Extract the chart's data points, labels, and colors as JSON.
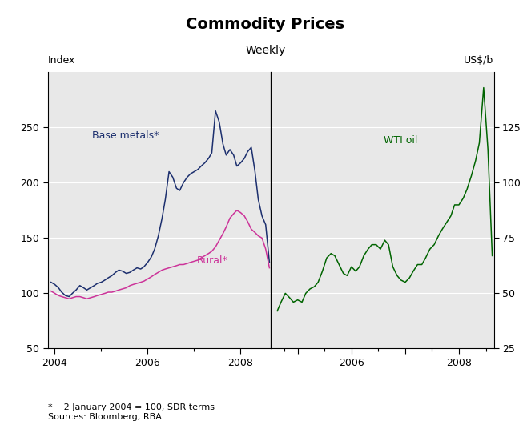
{
  "title": "Commodity Prices",
  "subtitle": "Weekly",
  "ylabel_left": "Index",
  "ylabel_right": "US$/b",
  "footnote": "*    2 January 2004 = 100, SDR terms\nSources: Bloomberg; RBA",
  "label_metals": "Base metals*",
  "label_rural": "Rural*",
  "label_oil": "WTI oil",
  "color_metals": "#1c2f6e",
  "color_rural": "#cc3399",
  "color_oil": "#006400",
  "ylim_left": [
    50,
    300
  ],
  "ylim_right": [
    25,
    150
  ],
  "yticks_left": [
    50,
    100,
    150,
    200,
    250
  ],
  "yticks_right": [
    25,
    50,
    75,
    100,
    125
  ],
  "background_color": "#e8e8e8",
  "metals_x": [
    2003.92,
    2004.0,
    2004.08,
    2004.15,
    2004.23,
    2004.31,
    2004.38,
    2004.46,
    2004.54,
    2004.62,
    2004.69,
    2004.77,
    2004.85,
    2004.92,
    2005.0,
    2005.08,
    2005.15,
    2005.23,
    2005.31,
    2005.38,
    2005.46,
    2005.54,
    2005.62,
    2005.69,
    2005.77,
    2005.85,
    2005.92,
    2006.0,
    2006.08,
    2006.15,
    2006.23,
    2006.31,
    2006.38,
    2006.46,
    2006.54,
    2006.62,
    2006.69,
    2006.77,
    2006.85,
    2006.92,
    2007.0,
    2007.08,
    2007.15,
    2007.23,
    2007.31,
    2007.38,
    2007.46,
    2007.54,
    2007.62,
    2007.69,
    2007.77,
    2007.85,
    2007.92,
    2008.0,
    2008.08,
    2008.15,
    2008.23,
    2008.31,
    2008.38,
    2008.46,
    2008.54,
    2008.62
  ],
  "metals_y": [
    110,
    108,
    105,
    101,
    98,
    97,
    100,
    103,
    107,
    105,
    103,
    105,
    107,
    109,
    110,
    112,
    114,
    116,
    119,
    121,
    120,
    118,
    119,
    121,
    123,
    122,
    124,
    128,
    133,
    140,
    152,
    168,
    185,
    210,
    205,
    195,
    193,
    200,
    205,
    208,
    210,
    212,
    215,
    218,
    222,
    227,
    265,
    255,
    235,
    225,
    230,
    225,
    215,
    218,
    222,
    228,
    232,
    210,
    185,
    170,
    162,
    128
  ],
  "rural_x": [
    2003.92,
    2004.0,
    2004.08,
    2004.15,
    2004.23,
    2004.31,
    2004.38,
    2004.46,
    2004.54,
    2004.62,
    2004.69,
    2004.77,
    2004.85,
    2004.92,
    2005.0,
    2005.08,
    2005.15,
    2005.23,
    2005.31,
    2005.38,
    2005.46,
    2005.54,
    2005.62,
    2005.69,
    2005.77,
    2005.85,
    2005.92,
    2006.0,
    2006.08,
    2006.15,
    2006.23,
    2006.31,
    2006.38,
    2006.46,
    2006.54,
    2006.62,
    2006.69,
    2006.77,
    2006.85,
    2006.92,
    2007.0,
    2007.08,
    2007.15,
    2007.23,
    2007.31,
    2007.38,
    2007.46,
    2007.54,
    2007.62,
    2007.69,
    2007.77,
    2007.85,
    2007.92,
    2008.0,
    2008.08,
    2008.15,
    2008.23,
    2008.31,
    2008.38,
    2008.46,
    2008.54,
    2008.62
  ],
  "rural_y": [
    102,
    100,
    98,
    97,
    96,
    95,
    96,
    97,
    97,
    96,
    95,
    96,
    97,
    98,
    99,
    100,
    101,
    101,
    102,
    103,
    104,
    105,
    107,
    108,
    109,
    110,
    111,
    113,
    115,
    117,
    119,
    121,
    122,
    123,
    124,
    125,
    126,
    126,
    127,
    128,
    129,
    130,
    132,
    134,
    136,
    138,
    142,
    148,
    154,
    160,
    168,
    172,
    175,
    173,
    170,
    165,
    158,
    155,
    152,
    150,
    140,
    123
  ],
  "oil_x": [
    2004.62,
    2004.69,
    2004.77,
    2004.85,
    2004.92,
    2005.0,
    2005.08,
    2005.15,
    2005.23,
    2005.31,
    2005.38,
    2005.46,
    2005.54,
    2005.62,
    2005.69,
    2005.77,
    2005.85,
    2005.92,
    2006.0,
    2006.08,
    2006.15,
    2006.23,
    2006.31,
    2006.38,
    2006.46,
    2006.54,
    2006.62,
    2006.69,
    2006.77,
    2006.85,
    2006.92,
    2007.0,
    2007.08,
    2007.15,
    2007.23,
    2007.31,
    2007.38,
    2007.46,
    2007.54,
    2007.62,
    2007.69,
    2007.77,
    2007.85,
    2007.92,
    2008.0,
    2008.08,
    2008.15,
    2008.23,
    2008.31,
    2008.38,
    2008.46,
    2008.54,
    2008.62
  ],
  "oil_y": [
    42,
    46,
    50,
    48,
    46,
    47,
    46,
    50,
    52,
    53,
    55,
    60,
    66,
    68,
    67,
    63,
    59,
    58,
    62,
    60,
    62,
    67,
    70,
    72,
    72,
    70,
    74,
    72,
    62,
    58,
    56,
    55,
    57,
    60,
    63,
    63,
    66,
    70,
    72,
    76,
    79,
    82,
    85,
    90,
    90,
    93,
    97,
    103,
    110,
    118,
    143,
    115,
    67
  ]
}
